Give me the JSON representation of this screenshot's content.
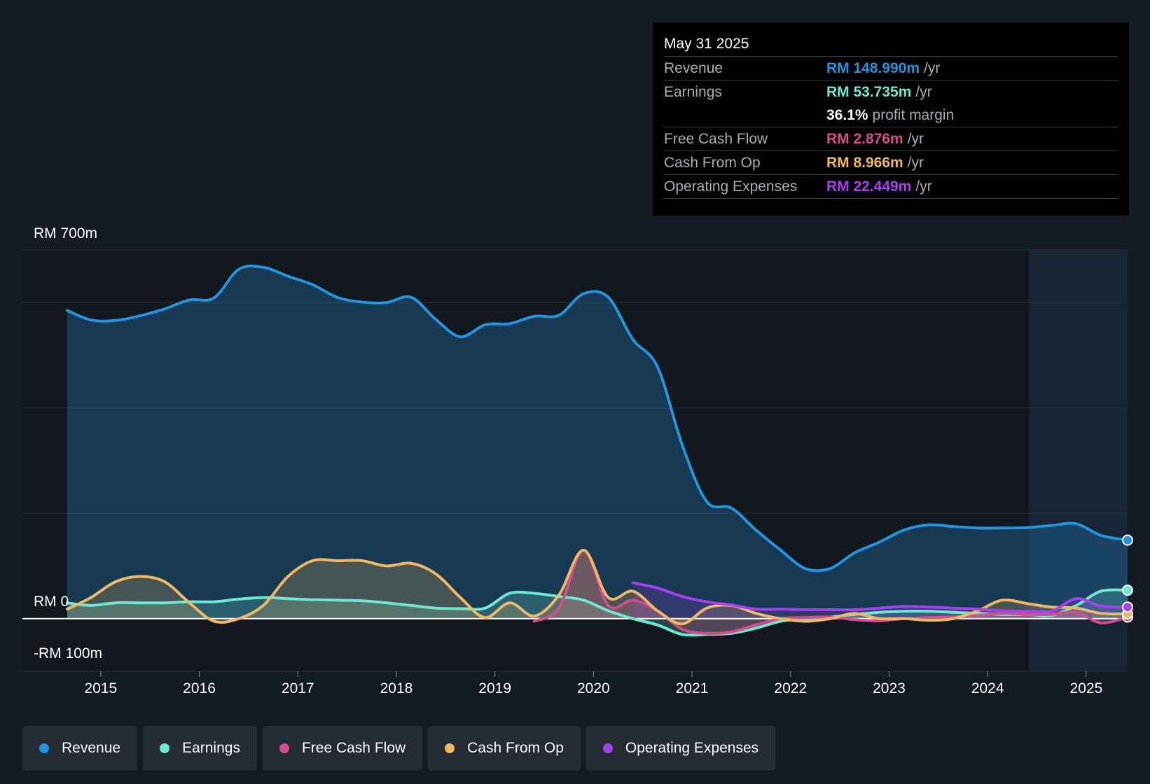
{
  "tooltip": {
    "date": "May 31 2025",
    "rows": [
      {
        "label": "Revenue",
        "value": "RM 148.990m",
        "unit": "/yr",
        "color": "#2394df"
      },
      {
        "label": "Earnings",
        "value": "RM 53.735m",
        "unit": "/yr",
        "color": "#6ee8d2"
      },
      {
        "label": "",
        "value": "36.1%",
        "unit": "profit margin",
        "color": "#ffffff"
      },
      {
        "label": "Free Cash Flow",
        "value": "RM 2.876m",
        "unit": "/yr",
        "color": "#d34f8b"
      },
      {
        "label": "Cash From Op",
        "value": "RM 8.966m",
        "unit": "/yr",
        "color": "#f0b865"
      },
      {
        "label": "Operating Expenses",
        "value": "RM 22.449m",
        "unit": "/yr",
        "color": "#a541ef"
      }
    ]
  },
  "legend": [
    {
      "label": "Revenue",
      "color": "#2394df"
    },
    {
      "label": "Earnings",
      "color": "#6ee8d2"
    },
    {
      "label": "Free Cash Flow",
      "color": "#d34f8b"
    },
    {
      "label": "Cash From Op",
      "color": "#f0b865"
    },
    {
      "label": "Operating Expenses",
      "color": "#a541ef"
    }
  ],
  "chart_data": {
    "type": "line",
    "title": "",
    "xlabel": "",
    "ylabel": "",
    "ylim": [
      -100,
      700
    ],
    "xlim": [
      2014.66,
      2025.42
    ],
    "y_axis_labels": [
      "RM 700m",
      "RM 0",
      "-RM 100m"
    ],
    "x_ticks": [
      "2015",
      "2016",
      "2017",
      "2018",
      "2019",
      "2020",
      "2021",
      "2022",
      "2023",
      "2024",
      "2025"
    ],
    "forecast_start": 2024.42,
    "series": [
      {
        "name": "Revenue",
        "color": "#2394df",
        "x": [
          2014.66,
          2014.9,
          2015.15,
          2015.4,
          2015.65,
          2015.9,
          2016.15,
          2016.4,
          2016.65,
          2016.9,
          2017.15,
          2017.4,
          2017.65,
          2017.9,
          2018.15,
          2018.4,
          2018.65,
          2018.9,
          2019.15,
          2019.4,
          2019.65,
          2019.9,
          2020.15,
          2020.4,
          2020.65,
          2020.9,
          2021.15,
          2021.4,
          2021.65,
          2021.9,
          2022.15,
          2022.4,
          2022.65,
          2022.9,
          2023.15,
          2023.4,
          2023.65,
          2023.9,
          2024.15,
          2024.42,
          2024.65,
          2024.9,
          2025.15,
          2025.42
        ],
        "values": [
          585,
          567,
          566,
          575,
          588,
          605,
          609,
          663,
          667,
          650,
          634,
          610,
          601,
          600,
          610,
          568,
          535,
          558,
          560,
          574,
          576,
          617,
          610,
          530,
          478,
          330,
          222,
          210,
          168,
          130,
          95,
          95,
          125,
          145,
          168,
          178,
          175,
          172,
          172,
          173,
          177,
          180,
          158,
          149
        ]
      },
      {
        "name": "Earnings",
        "color": "#6ee8d2",
        "x": [
          2014.66,
          2014.9,
          2015.15,
          2015.4,
          2015.65,
          2015.9,
          2016.15,
          2016.4,
          2016.65,
          2016.9,
          2017.15,
          2017.4,
          2017.65,
          2017.9,
          2018.15,
          2018.4,
          2018.65,
          2018.9,
          2019.15,
          2019.4,
          2019.65,
          2019.9,
          2020.15,
          2020.4,
          2020.65,
          2020.9,
          2021.15,
          2021.4,
          2021.65,
          2021.9,
          2022.15,
          2022.4,
          2022.65,
          2022.9,
          2023.15,
          2023.4,
          2023.65,
          2023.9,
          2024.15,
          2024.42,
          2024.65,
          2024.9,
          2025.15,
          2025.42
        ],
        "values": [
          30,
          25,
          30,
          30,
          30,
          32,
          32,
          37,
          40,
          38,
          36,
          35,
          34,
          30,
          25,
          20,
          19,
          20,
          48,
          48,
          42,
          35,
          15,
          0,
          -12,
          -30,
          -30,
          -28,
          -18,
          -5,
          0,
          3,
          8,
          12,
          14,
          14,
          12,
          10,
          8,
          8,
          6,
          25,
          52,
          54
        ]
      },
      {
        "name": "Free Cash Flow",
        "color": "#d34f8b",
        "x": [
          2019.4,
          2019.65,
          2019.9,
          2020.15,
          2020.4,
          2020.65,
          2020.9,
          2021.15,
          2021.4,
          2021.65,
          2021.9,
          2022.15,
          2022.4,
          2022.65,
          2022.9,
          2023.15,
          2023.4,
          2023.65,
          2023.9,
          2024.15,
          2024.42,
          2024.65,
          2024.9,
          2025.15,
          2025.42
        ],
        "values": [
          -5,
          20,
          130,
          25,
          35,
          15,
          -20,
          -28,
          -25,
          -12,
          0,
          2,
          3,
          -2,
          -4,
          0,
          2,
          3,
          6,
          10,
          8,
          8,
          12,
          -8,
          3
        ]
      },
      {
        "name": "Cash From Op",
        "color": "#f0b865",
        "x": [
          2014.66,
          2014.9,
          2015.15,
          2015.4,
          2015.65,
          2015.9,
          2016.15,
          2016.4,
          2016.65,
          2016.9,
          2017.15,
          2017.4,
          2017.65,
          2017.9,
          2018.15,
          2018.4,
          2018.65,
          2018.9,
          2019.15,
          2019.4,
          2019.65,
          2019.9,
          2020.15,
          2020.4,
          2020.65,
          2020.9,
          2021.15,
          2021.4,
          2021.65,
          2021.9,
          2022.15,
          2022.4,
          2022.65,
          2022.9,
          2023.15,
          2023.4,
          2023.65,
          2023.9,
          2024.15,
          2024.42,
          2024.65,
          2024.9,
          2025.15,
          2025.42
        ],
        "values": [
          18,
          40,
          70,
          80,
          70,
          30,
          -5,
          0,
          25,
          80,
          110,
          110,
          110,
          100,
          105,
          85,
          40,
          2,
          30,
          5,
          45,
          130,
          40,
          52,
          15,
          -10,
          20,
          25,
          10,
          0,
          -5,
          0,
          10,
          0,
          0,
          -3,
          0,
          15,
          35,
          28,
          22,
          20,
          10,
          9
        ]
      },
      {
        "name": "Operating Expenses",
        "color": "#a541ef",
        "x": [
          2020.4,
          2020.65,
          2020.9,
          2021.15,
          2021.4,
          2021.65,
          2021.9,
          2022.15,
          2022.4,
          2022.65,
          2022.9,
          2023.15,
          2023.4,
          2023.65,
          2023.9,
          2024.15,
          2024.42,
          2024.65,
          2024.9,
          2025.15,
          2025.42
        ],
        "values": [
          68,
          58,
          42,
          32,
          26,
          18,
          18,
          17,
          17,
          17,
          20,
          23,
          22,
          20,
          18,
          15,
          14,
          14,
          38,
          24,
          22
        ]
      }
    ]
  }
}
